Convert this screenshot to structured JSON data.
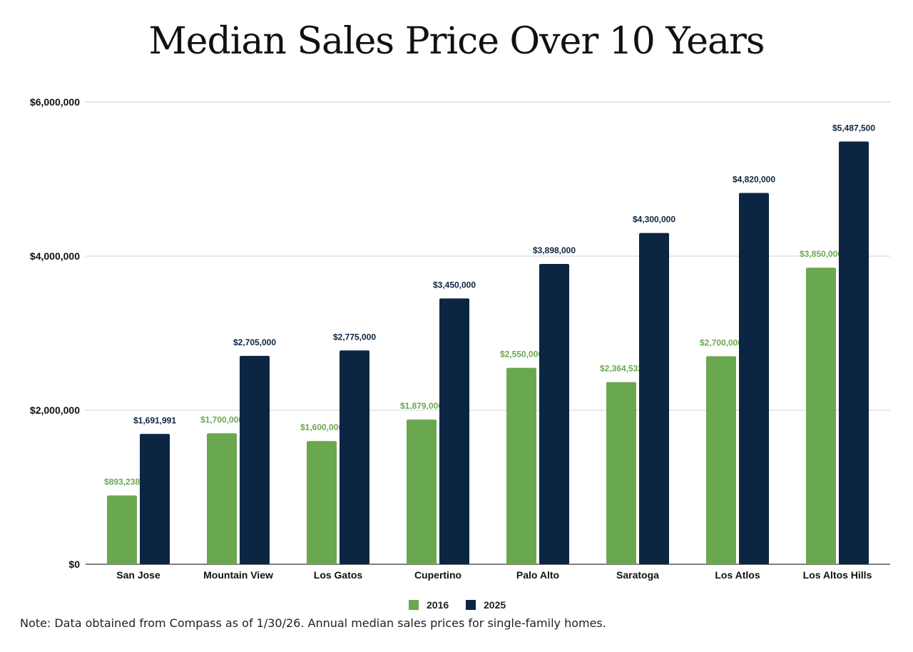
{
  "chart_data": {
    "type": "bar",
    "title": "Median Sales Price Over 10 Years",
    "xlabel": "",
    "ylabel": "",
    "ylim": [
      0,
      6000000
    ],
    "yticks": [
      0,
      2000000,
      4000000,
      6000000
    ],
    "ytick_labels": [
      "$0",
      "$2,000,000",
      "$4,000,000",
      "$6,000,000"
    ],
    "grid": true,
    "legend_position": "bottom",
    "categories": [
      "San Jose",
      "Mountain View",
      "Los Gatos",
      "Cupertino",
      "Palo Alto",
      "Saratoga",
      "Los Atlos",
      "Los Altos Hills"
    ],
    "series": [
      {
        "name": "2016",
        "color": "#6aa84f",
        "values": [
          893238,
          1700000,
          1600000,
          1879000,
          2550000,
          2364532,
          2700000,
          3850000
        ],
        "labels": [
          "$893,238",
          "$1,700,000",
          "$1,600,000",
          "$1,879,000",
          "$2,550,000",
          "$2,364,532",
          "$2,700,000",
          "$3,850,000"
        ]
      },
      {
        "name": "2025",
        "color": "#0b2542",
        "values": [
          1691991,
          2705000,
          2775000,
          3450000,
          3898000,
          4300000,
          4820000,
          5487500
        ],
        "labels": [
          "$1,691,991",
          "$2,705,000",
          "$2,775,000",
          "$3,450,000",
          "$3,898,000",
          "$4,300,000",
          "$4,820,000",
          "$5,487,500"
        ]
      }
    ]
  },
  "note": "Note: Data obtained from Compass as of 1/30/26.  Annual median sales prices for single-family homes."
}
